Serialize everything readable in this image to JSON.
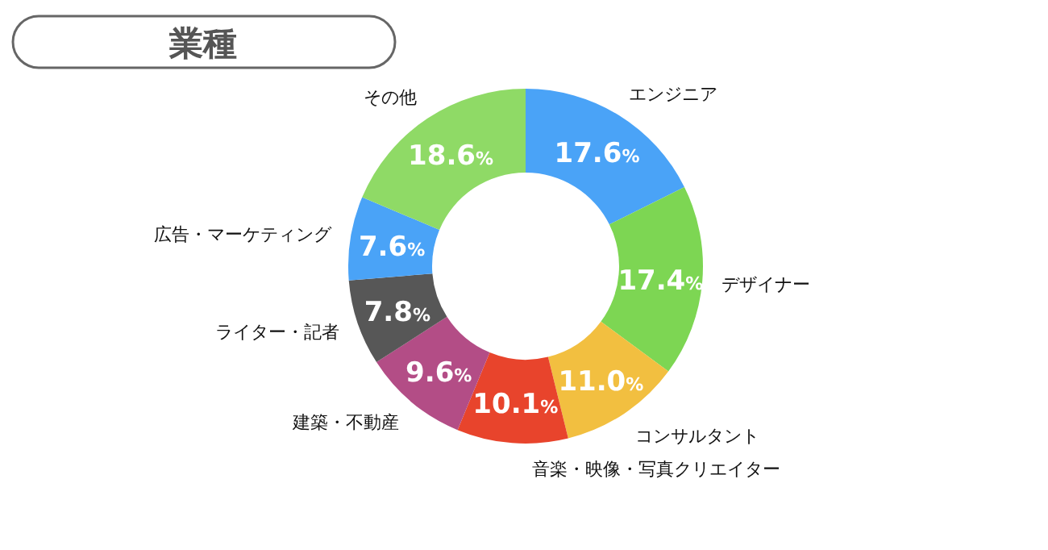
{
  "chart_data": {
    "type": "donut",
    "title": "業種",
    "categories": [
      "エンジニア",
      "デザイナー",
      "コンサルタント",
      "音楽・映像・写真クリエイター",
      "建築・不動産",
      "ライター・記者",
      "広告・マーケティング",
      "その他"
    ],
    "values": [
      17.6,
      17.4,
      11.0,
      10.1,
      9.6,
      7.8,
      7.6,
      18.6
    ],
    "value_labels": [
      "17.6%",
      "17.4%",
      "11.0%",
      "10.1%",
      "9.6%",
      "7.8%",
      "7.6%",
      "18.6%"
    ],
    "colors": [
      "#4aa3f7",
      "#7dd653",
      "#f2bf40",
      "#e8442c",
      "#b34d86",
      "#575757",
      "#4aa3f7",
      "#8fda66"
    ]
  }
}
